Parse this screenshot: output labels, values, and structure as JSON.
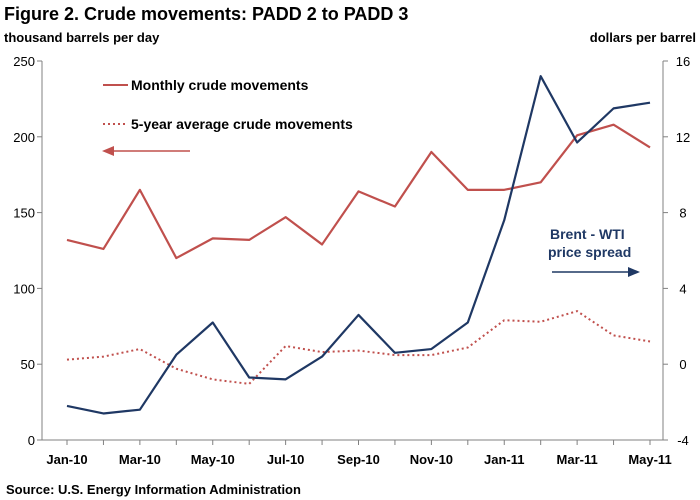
{
  "chart_data": {
    "type": "line",
    "title": "Figure 2. Crude movements: PADD 2 to PADD 3",
    "ylabel": "thousand barrels per day",
    "y2label": "dollars per barrel",
    "source": "Source:  U.S. Energy Information Administration",
    "x": [
      "Jan-10",
      "Feb-10",
      "Mar-10",
      "Apr-10",
      "May-10",
      "Jun-10",
      "Jul-10",
      "Aug-10",
      "Sep-10",
      "Oct-10",
      "Nov-10",
      "Dec-10",
      "Jan-11",
      "Feb-11",
      "Mar-11",
      "Apr-11",
      "May-11"
    ],
    "x_tick_labels": [
      "Jan-10",
      "Mar-10",
      "May-10",
      "Jul-10",
      "Sep-10",
      "Nov-10",
      "Jan-11",
      "Mar-11",
      "May-11"
    ],
    "ylim": [
      0,
      250
    ],
    "y_ticks": [
      0,
      50,
      100,
      150,
      200,
      250
    ],
    "y2lim": [
      -4,
      16
    ],
    "y2_ticks": [
      -4,
      0,
      4,
      8,
      12,
      16
    ],
    "grid": false,
    "series": [
      {
        "name": "Monthly crude movements",
        "axis": "left",
        "style": "solid",
        "color": "#c0504d",
        "values": [
          132,
          126,
          165,
          120,
          133,
          132,
          147,
          129,
          164,
          154,
          190,
          165,
          165,
          170,
          201,
          208,
          193
        ]
      },
      {
        "name": "5-year average crude movements",
        "axis": "left",
        "style": "dotted",
        "color": "#c0504d",
        "values": [
          53,
          55,
          60,
          47,
          40,
          37,
          62,
          58,
          59,
          56,
          56,
          61,
          79,
          78,
          85,
          69,
          65
        ]
      },
      {
        "name": "",
        "axis": "right",
        "style": "solid",
        "color": "#1f3864",
        "values": [
          -2.2,
          -2.6,
          -2.4,
          0.5,
          2.2,
          -0.7,
          -0.8,
          0.4,
          2.6,
          0.6,
          0.8,
          2.2,
          7.6,
          15.2,
          11.7,
          13.5,
          13.8
        ]
      }
    ],
    "annotations": {
      "brent_line1": "Brent - WTI",
      "brent_line2": "price spread",
      "left_arrow_color": "#c0504d",
      "right_arrow_color": "#1f3864"
    }
  }
}
